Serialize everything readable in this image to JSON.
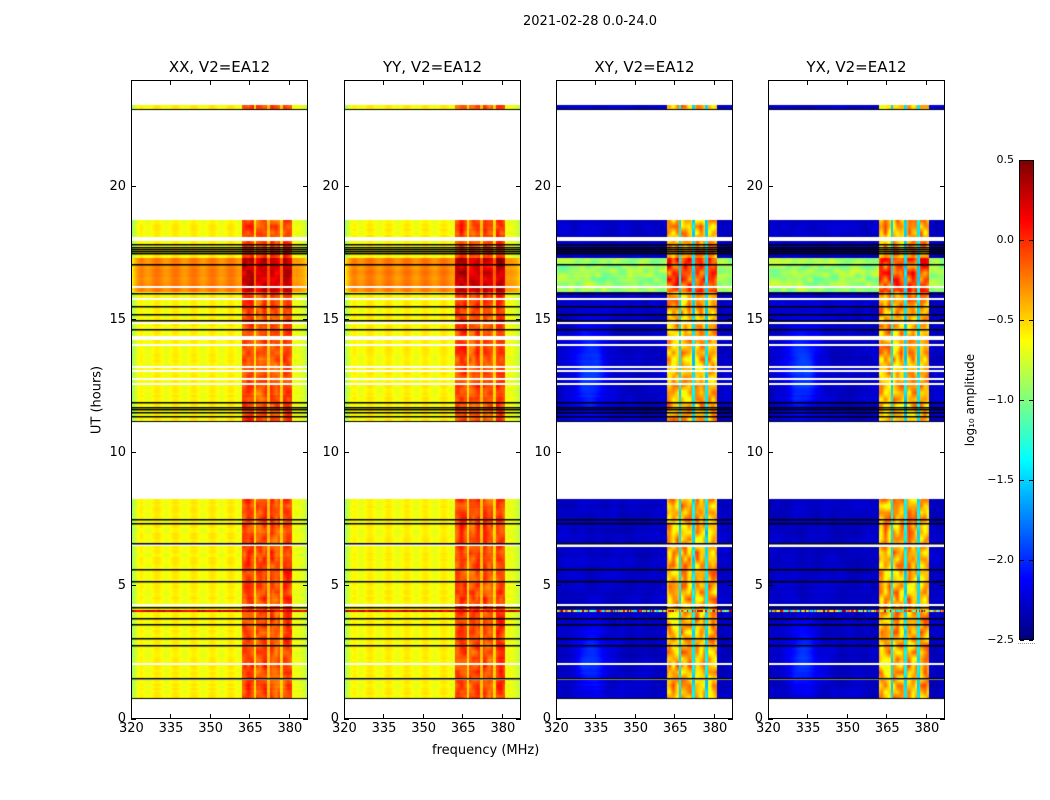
{
  "chart_data": {
    "type": "heatmap",
    "title": "2021-02-28 0.0-24.0",
    "xlabel": "frequency (MHz)",
    "ylabel": "UT (hours)",
    "xlim": [
      320,
      387
    ],
    "ylim": [
      0,
      24
    ],
    "xticks": [
      320,
      335,
      350,
      365,
      380
    ],
    "yticks": [
      0,
      5,
      10,
      15,
      20
    ],
    "colorbar": {
      "label": "log₁₀ amplitude",
      "colormap": "jet",
      "range": [
        -2.5,
        0.5
      ],
      "ticks": [
        "0.5",
        "0.0",
        "−0.5",
        "−1.0",
        "−1.5",
        "−2.0",
        "−2.5"
      ]
    },
    "panels": [
      {
        "title": "XX, V2=EA12",
        "kind": "parallel"
      },
      {
        "title": "YY, V2=EA12",
        "kind": "parallel"
      },
      {
        "title": "XY, V2=EA12",
        "kind": "cross"
      },
      {
        "title": "YX, V2=EA12",
        "kind": "cross"
      }
    ],
    "observed_hours": [
      [
        0.8,
        8.25
      ],
      [
        11.2,
        18.75
      ],
      [
        22.9,
        23.05
      ]
    ],
    "bright_band_hours": [
      16.05,
      17.3
    ],
    "rfi_bands_mhz": [
      [
        362,
        366.5
      ],
      [
        367.5,
        371.5
      ],
      [
        372.5,
        376.5
      ],
      [
        377.5,
        381
      ]
    ],
    "flagged_black_hours": [
      17.84,
      17.72,
      17.65,
      17.57,
      17.5,
      17.09,
      16.0,
      15.51,
      15.21,
      14.98,
      14.65,
      11.9,
      11.72,
      11.64,
      11.53,
      11.38,
      7.5,
      7.35,
      6.6,
      5.63,
      5.18,
      4.2,
      3.8,
      3.55,
      3.05,
      2.78,
      1.55
    ],
    "flagged_white_hours": [
      18.06,
      17.99,
      16.22,
      15.77,
      14.87,
      14.3,
      14.04,
      13.22,
      13.07,
      12.77,
      12.58,
      6.52,
      4.3,
      2.07,
      1.5
    ],
    "rfi_burst_hours": 4.05
  }
}
